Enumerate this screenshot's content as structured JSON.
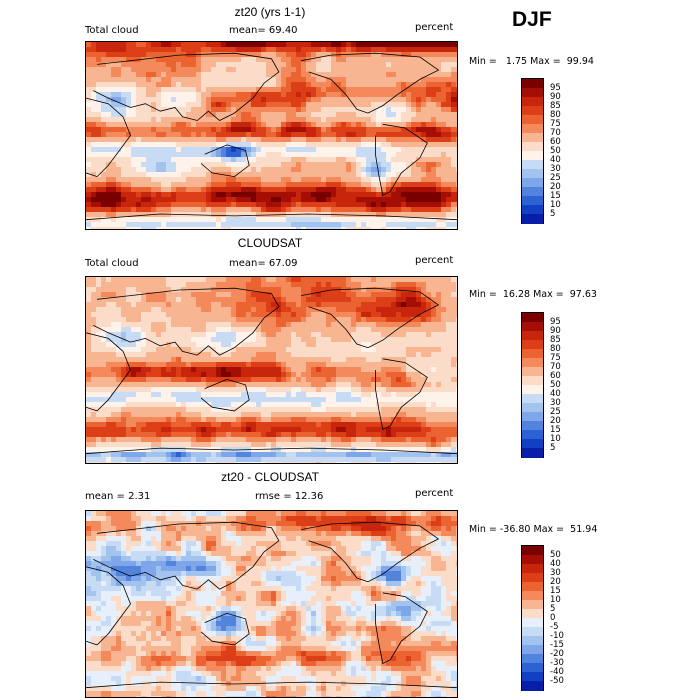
{
  "season": "DJF",
  "panels": [
    {
      "title": "zt20 (yrs 1-1)",
      "left_label": "Total cloud",
      "stat_text": "mean=  69.40",
      "units": "percent",
      "minmax": "Min =   1.75 Max =  99.94",
      "pattern": "model",
      "colorbar": {
        "labels": [
          "95",
          "90",
          "85",
          "80",
          "75",
          "70",
          "60",
          "50",
          "40",
          "30",
          "25",
          "20",
          "15",
          "10",
          "5"
        ],
        "colors": [
          "#7a0000",
          "#a50e05",
          "#c8260c",
          "#dc3f18",
          "#ea6331",
          "#f48a5b",
          "#f8b592",
          "#fbdcc8",
          "#fdf3ea",
          "#c7dbf5",
          "#a3c3ef",
          "#7ea6e8",
          "#5284de",
          "#2c62d2",
          "#1240c4",
          "#061fa6"
        ]
      }
    },
    {
      "title": "CLOUDSAT",
      "left_label": "Total cloud",
      "stat_text": "mean=  67.09",
      "units": "percent",
      "minmax": "Min =  16.28 Max =  97.63",
      "pattern": "obs",
      "colorbar": {
        "labels": [
          "95",
          "90",
          "85",
          "80",
          "75",
          "70",
          "60",
          "50",
          "40",
          "30",
          "25",
          "20",
          "15",
          "10",
          "5"
        ],
        "colors": [
          "#7a0000",
          "#a50e05",
          "#c8260c",
          "#dc3f18",
          "#ea6331",
          "#f48a5b",
          "#f8b592",
          "#fbdcc8",
          "#fdf3ea",
          "#c7dbf5",
          "#a3c3ef",
          "#7ea6e8",
          "#5284de",
          "#2c62d2",
          "#1240c4",
          "#061fa6"
        ]
      }
    },
    {
      "title": "zt20 - CLOUDSAT",
      "left_label": "mean =   2.31",
      "stat_text": "rmse =  12.36",
      "units": "percent",
      "minmax": "Min = -36.80 Max =  51.94",
      "pattern": "diff",
      "colorbar": {
        "labels": [
          "50",
          "40",
          "30",
          "20",
          "15",
          "10",
          "5",
          "0",
          "-5",
          "-10",
          "-15",
          "-20",
          "-30",
          "-40",
          "-50"
        ],
        "colors": [
          "#7a0000",
          "#a50e05",
          "#c8260c",
          "#dc3f18",
          "#ea6331",
          "#f48a5b",
          "#f8b592",
          "#fbdcc8",
          "#e6effa",
          "#c7dbf5",
          "#a3c3ef",
          "#7ea6e8",
          "#5284de",
          "#2c62d2",
          "#1240c4",
          "#061fa6"
        ]
      }
    }
  ]
}
